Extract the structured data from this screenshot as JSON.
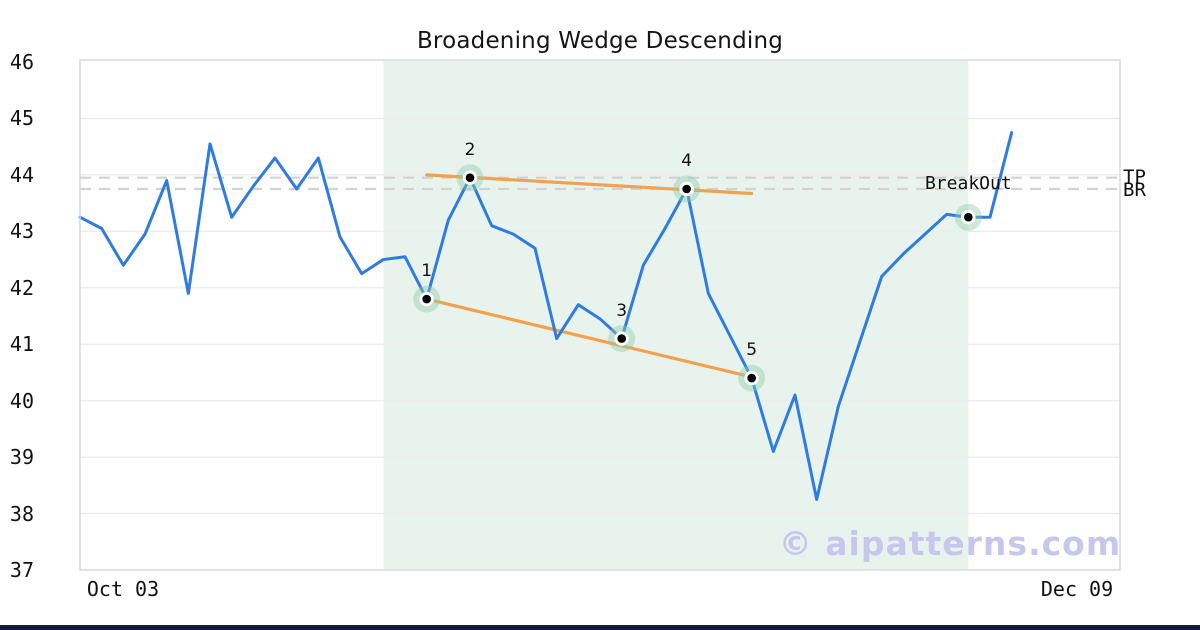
{
  "title": "Broadening Wedge Descending",
  "watermark": "© aipatterns.com",
  "axis": {
    "y_ticks": [
      "46",
      "45",
      "44",
      "43",
      "42",
      "41",
      "40",
      "39",
      "38",
      "37"
    ],
    "x_ticks": [
      {
        "label": "Oct 03",
        "index": 2
      },
      {
        "label": "Dec 09",
        "index": 46
      }
    ],
    "right_labels": [
      {
        "label": "TP",
        "value": 43.95
      },
      {
        "label": "BR",
        "value": 43.75
      }
    ]
  },
  "chart_data": {
    "type": "line",
    "title": "Broadening Wedge Descending",
    "xlabel": "",
    "ylabel": "",
    "ylim": [
      37,
      46
    ],
    "x_index_range": [
      0,
      48
    ],
    "grid": "horizontal",
    "grid_values": [
      38,
      39,
      40,
      41,
      42,
      43,
      44,
      45
    ],
    "x_tick_labels": [
      "Oct 03",
      "Dec 09"
    ],
    "series": [
      {
        "name": "price",
        "color": "#2e7ce0",
        "values": [
          43.25,
          43.05,
          42.4,
          42.95,
          43.9,
          41.9,
          44.55,
          43.25,
          43.8,
          44.3,
          43.75,
          44.3,
          42.9,
          42.25,
          42.5,
          42.55,
          41.8,
          43.2,
          43.95,
          43.1,
          42.95,
          42.7,
          41.1,
          41.7,
          41.45,
          41.1,
          42.4,
          43.05,
          43.75,
          41.9,
          41.15,
          40.4,
          39.1,
          40.1,
          38.25,
          39.9,
          41.05,
          42.2,
          42.6,
          42.95,
          43.3,
          43.25,
          43.25,
          44.75
        ]
      }
    ],
    "pattern_points": [
      {
        "label": "1",
        "index": 16,
        "value": 41.8
      },
      {
        "label": "2",
        "index": 18,
        "value": 43.95
      },
      {
        "label": "3",
        "index": 25,
        "value": 41.1
      },
      {
        "label": "4",
        "index": 28,
        "value": 43.75
      },
      {
        "label": "5",
        "index": 31,
        "value": 40.4
      }
    ],
    "breakout": {
      "label": "BreakOut",
      "index": 41,
      "value": 43.25
    },
    "trendlines": [
      {
        "name": "upper",
        "x1_index": 16,
        "v1": 44.0,
        "x2_index": 31,
        "v2": 43.67,
        "color": "#f2a24e"
      },
      {
        "name": "lower",
        "x1_index": 16,
        "v1": 41.8,
        "x2_index": 31,
        "v2": 40.42,
        "color": "#f2a24e"
      }
    ],
    "levels": [
      {
        "label": "TP",
        "value": 43.95
      },
      {
        "label": "BR",
        "value": 43.75
      }
    ],
    "shaded_region": {
      "from_index": 14,
      "to_index": 41,
      "color": "#e9f3ee"
    }
  },
  "colors": {
    "line": "#2e7ce0",
    "trendline": "#f2a24e",
    "region": "#e9f3ee",
    "grid": "#ececec",
    "border": "#d8d8d8",
    "dashed_level": "#d2d2d2",
    "marker_halo": "#8ccba7",
    "marker_dot": "#000000",
    "watermark": "#c7c7ee",
    "bottom_bar": "#131b3a"
  }
}
